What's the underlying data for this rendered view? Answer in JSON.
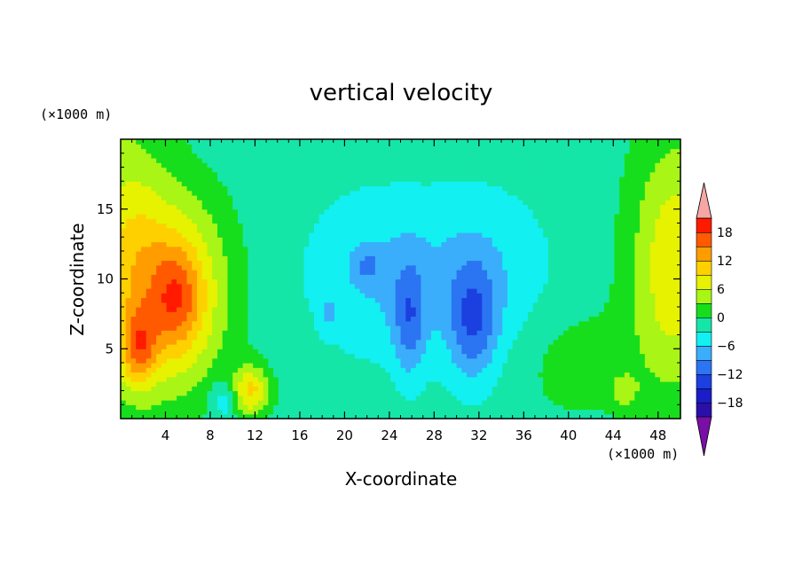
{
  "chart_data": {
    "type": "heatmap",
    "title": "vertical velocity",
    "xlabel": "X-coordinate",
    "ylabel": "Z-coordinate",
    "x_unit": "(×1000 m)",
    "y_unit": "(×1000 m)",
    "xlim": [
      0,
      50
    ],
    "ylim": [
      0,
      20
    ],
    "x_ticks": [
      4,
      8,
      12,
      16,
      20,
      24,
      28,
      32,
      36,
      40,
      44,
      48
    ],
    "y_ticks": [
      5,
      10,
      15
    ],
    "colorbar": {
      "levels": [
        -21,
        -18,
        -15,
        -12,
        -9,
        -6,
        -3,
        0,
        3,
        6,
        9,
        12,
        15,
        18,
        21
      ],
      "tick_values": [
        18,
        12,
        6,
        0,
        -6,
        -12,
        -18
      ],
      "tick_labels": [
        "18",
        "12",
        "6",
        "0",
        "−6",
        "−12",
        "−18"
      ],
      "colors": [
        "#7a0ea8",
        "#2b0fa8",
        "#1a1dc8",
        "#1c40e0",
        "#2b74f2",
        "#3aaefa",
        "#12f0f2",
        "#15e6a8",
        "#17de1c",
        "#a8f516",
        "#e6f200",
        "#ffd000",
        "#ff9d00",
        "#ff5a00",
        "#ff1a00",
        "#f7a6a6"
      ],
      "extend": "both"
    },
    "background_value": -1.5,
    "features": [
      {
        "x": 5,
        "z": 9,
        "sx": 3.2,
        "sz": 4.8,
        "value": 13
      },
      {
        "x": 5,
        "z": 8.5,
        "sx": 1.4,
        "sz": 2.3,
        "value": 6
      },
      {
        "x": 1.6,
        "z": 5,
        "sx": 1.1,
        "sz": 1.9,
        "value": 10
      },
      {
        "x": 0.4,
        "z": 12,
        "sx": 2.6,
        "sz": 7,
        "value": 8
      },
      {
        "x": 11.6,
        "z": 2,
        "sx": 1.2,
        "sz": 1.3,
        "value": 11
      },
      {
        "x": 9.3,
        "z": 1.4,
        "sx": 0.9,
        "sz": 1.1,
        "value": -5
      },
      {
        "x": 49.5,
        "z": 11,
        "sx": 2.8,
        "sz": 6.5,
        "value": 10
      },
      {
        "x": 40.5,
        "z": 4,
        "sx": 4,
        "sz": 3,
        "value": 3
      },
      {
        "x": 22.5,
        "z": 10.5,
        "sx": 4.2,
        "sz": 4,
        "value": -4.5
      },
      {
        "x": 32,
        "z": 10,
        "sx": 4.5,
        "sz": 4.5,
        "value": -4.5
      },
      {
        "x": 31.5,
        "z": 7,
        "sx": 1.5,
        "sz": 3,
        "value": -8
      },
      {
        "x": 25.8,
        "z": 7,
        "sx": 1,
        "sz": 2.8,
        "value": -7
      },
      {
        "x": 22,
        "z": 11,
        "sx": 0.8,
        "sz": 0.8,
        "value": -4
      },
      {
        "x": 18.6,
        "z": 7.5,
        "sx": 0.5,
        "sz": 0.9,
        "value": -3
      },
      {
        "x": 45,
        "z": 2,
        "sx": 0.8,
        "sz": 0.8,
        "value": 5
      }
    ]
  }
}
